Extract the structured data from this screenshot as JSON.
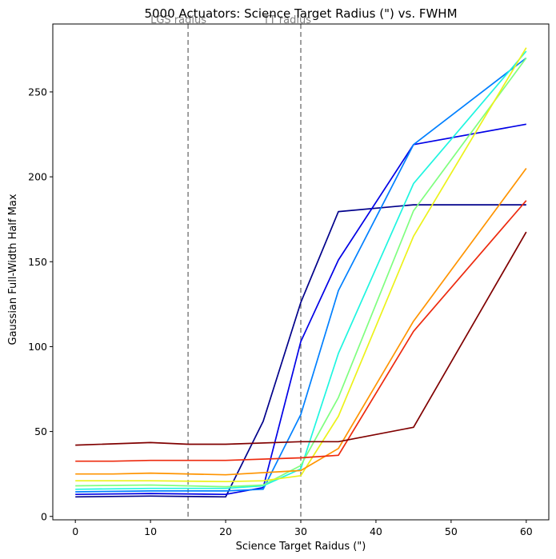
{
  "chart_data": {
    "type": "line",
    "title": "5000 Actuators: Science Target Radius (\") vs. FWHM",
    "xlabel": "Science Target Raidus (\")",
    "ylabel": "Gaussian Full-Width Half Max",
    "xlim": [
      -3,
      63
    ],
    "ylim": [
      -2,
      290
    ],
    "xticks": [
      0,
      10,
      20,
      30,
      40,
      50,
      60
    ],
    "yticks": [
      0,
      50,
      100,
      150,
      200,
      250
    ],
    "grid": false,
    "vlines": [
      {
        "x": 15,
        "label": "LGS radius",
        "color": "#808080"
      },
      {
        "x": 30,
        "label": "TT radius",
        "color": "#808080"
      }
    ],
    "series": [
      {
        "color": "#00008b",
        "x": [
          0,
          10,
          20,
          25,
          30,
          35,
          45,
          60
        ],
        "y": [
          11.5,
          12,
          11.5,
          56,
          126,
          179.5,
          183.5,
          183.5
        ]
      },
      {
        "color": "#0000e6",
        "x": [
          0,
          10,
          20,
          25,
          30,
          35,
          45,
          60
        ],
        "y": [
          13,
          13.5,
          13,
          17,
          103,
          151,
          219,
          231
        ]
      },
      {
        "color": "#0080ff",
        "x": [
          0,
          10,
          20,
          25,
          30,
          35,
          45,
          60
        ],
        "y": [
          14.5,
          15,
          15,
          16,
          60,
          133,
          219,
          270
        ]
      },
      {
        "color": "#1ff5e0",
        "x": [
          0,
          10,
          20,
          25,
          30,
          35,
          45,
          60
        ],
        "y": [
          16,
          16.5,
          16.5,
          18,
          28,
          96,
          196,
          274
        ]
      },
      {
        "color": "#7fff7f",
        "x": [
          0,
          10,
          20,
          25,
          30,
          35,
          45,
          60
        ],
        "y": [
          18,
          18.5,
          17.5,
          18.5,
          30,
          70,
          180,
          270
        ]
      },
      {
        "color": "#ecf21a",
        "x": [
          0,
          10,
          20,
          25,
          30,
          35,
          45,
          60
        ],
        "y": [
          21,
          21,
          20.5,
          21,
          24,
          59,
          165,
          276
        ]
      },
      {
        "color": "#ff9400",
        "x": [
          0,
          5,
          10,
          20,
          30,
          35,
          45,
          60
        ],
        "y": [
          25,
          25,
          25.5,
          24.5,
          27,
          40,
          115,
          205
        ]
      },
      {
        "color": "#ed2a0e",
        "x": [
          0,
          5,
          10,
          20,
          30,
          35,
          45,
          60
        ],
        "y": [
          32.5,
          32.5,
          33,
          33,
          34.5,
          36,
          109,
          186
        ]
      },
      {
        "color": "#800000",
        "x": [
          0,
          10,
          15,
          20,
          30,
          35,
          45,
          60
        ],
        "y": [
          42,
          43.5,
          42.5,
          42.5,
          44,
          44,
          52.5,
          167.5
        ]
      }
    ]
  }
}
